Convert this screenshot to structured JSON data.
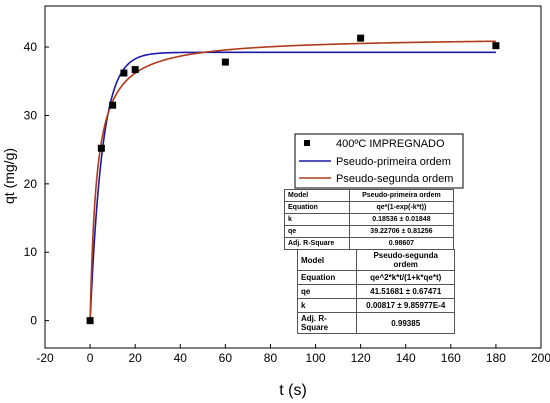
{
  "chart_data": {
    "type": "scatter",
    "xlabel": "t (s)",
    "ylabel": "qt (mg/g)",
    "xlim": [
      -20,
      200
    ],
    "ylim": [
      -4,
      46
    ],
    "xticks": [
      -20,
      0,
      20,
      40,
      60,
      80,
      100,
      120,
      140,
      160,
      180,
      200
    ],
    "yticks": [
      0,
      10,
      20,
      30,
      40
    ],
    "legend_position": "right-middle",
    "series": [
      {
        "name": "400ºC IMPREGNADO",
        "kind": "points",
        "color": "#000000",
        "x": [
          0,
          5,
          10,
          15,
          20,
          60,
          120,
          180
        ],
        "y": [
          0,
          25.2,
          31.5,
          36.2,
          36.7,
          37.8,
          41.3,
          40.2
        ]
      },
      {
        "name": "Pseudo-primeira ordem",
        "kind": "line",
        "color": "#1a1aa6",
        "model": "pfo",
        "params": {
          "qe": 39.22706,
          "k": 0.18536
        }
      },
      {
        "name": "Pseudo-segunda ordem",
        "kind": "line",
        "color": "#b03a1a",
        "model": "pso",
        "params": {
          "qe": 41.51681,
          "k": 0.00817
        }
      }
    ]
  },
  "fit_tables": [
    {
      "rows": [
        [
          "Model",
          "Pseudo-primeira ordem"
        ],
        [
          "Equation",
          "qe*(1-exp(-k*t))"
        ],
        [
          "k",
          "0.18536 ± 0.01848"
        ],
        [
          "qe",
          "39.22706 ± 0.81256"
        ],
        [
          "Adj. R-Square",
          "0.98607"
        ]
      ]
    },
    {
      "rows": [
        [
          "Model",
          "Pseudo-segunda ordem"
        ],
        [
          "Equation",
          "qe^2*k*t/(1+k*qe*t)"
        ],
        [
          "qe",
          "41.51681 ± 0.67471"
        ],
        [
          "k",
          "0.00817 ± 9.85977E-4"
        ],
        [
          "Adj. R-Square",
          "0.99385"
        ]
      ]
    }
  ]
}
